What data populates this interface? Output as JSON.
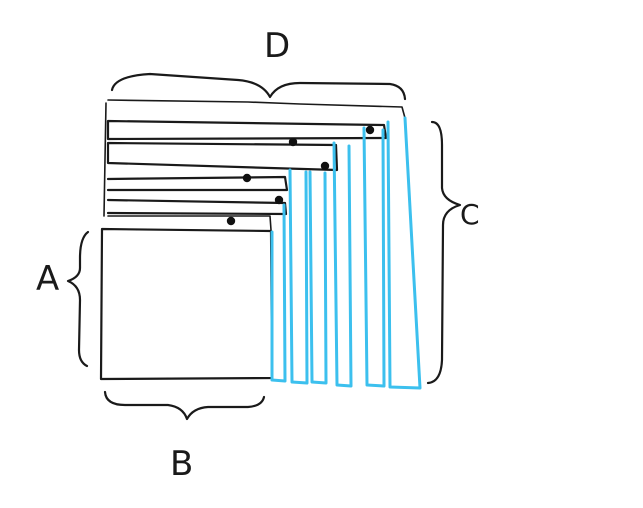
{
  "labels": {
    "top": "D",
    "right": "C",
    "left": "A",
    "bottom": "B"
  },
  "colors": {
    "ink": "#1a1a1a",
    "blue": "#3cc0ee",
    "background": "#ffffff"
  }
}
